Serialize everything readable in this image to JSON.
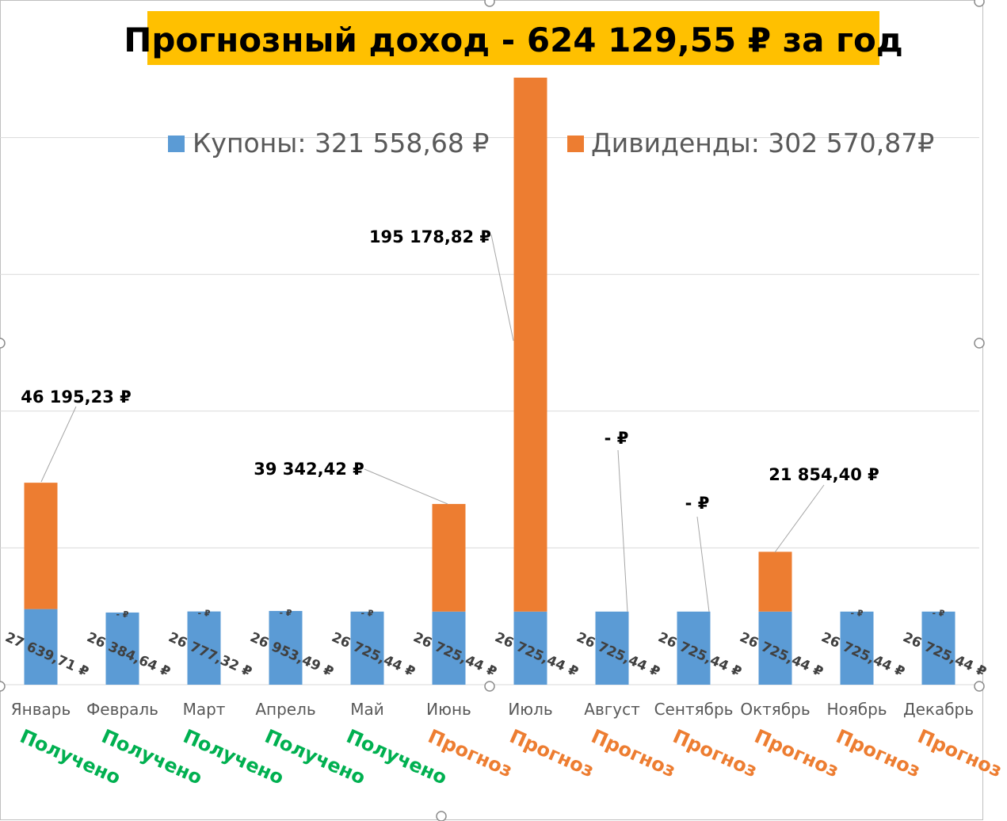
{
  "chart_data": {
    "type": "bar",
    "stacked": true,
    "title": "Прогнозный доход - 624 129,55 ₽ за год",
    "categories": [
      "Январь",
      "Февраль",
      "Март",
      "Апрель",
      "Май",
      "Июнь",
      "Июль",
      "Август",
      "Сентябрь",
      "Октябрь",
      "Ноябрь",
      "Декабрь"
    ],
    "status_labels": [
      "Получено",
      "Получено",
      "Получено",
      "Получено",
      "Получено",
      "Прогноз",
      "Прогноз",
      "Прогноз",
      "Прогноз",
      "Прогноз",
      "Прогноз",
      "Прогноз"
    ],
    "series": [
      {
        "name": "Купоны",
        "legend_label": "Купоны: 321 558,68 ₽",
        "color": "#5b9bd5",
        "values": [
          27639.71,
          26384.64,
          26777.32,
          26953.49,
          26725.44,
          26725.44,
          26725.44,
          26725.44,
          26725.44,
          26725.44,
          26725.44,
          26725.44
        ],
        "labels": [
          "27 639,71 ₽",
          "26 384,64 ₽",
          "26 777,32 ₽",
          "26 953,49 ₽",
          "26 725,44 ₽",
          "26 725,44 ₽",
          "26 725,44 ₽",
          "26 725,44 ₽",
          "26 725,44 ₽",
          "26 725,44 ₽",
          "26 725,44 ₽",
          "26 725,44 ₽"
        ]
      },
      {
        "name": "Дивиденды",
        "legend_label": "Дивиденды: 302 570,87₽",
        "color": "#ed7d31",
        "values": [
          46195.23,
          0,
          0,
          0,
          0,
          39342.42,
          195178.82,
          0,
          0,
          21854.4,
          0,
          0
        ],
        "labels": [
          "46 195,23 ₽",
          "- ₽",
          "- ₽",
          "- ₽",
          "- ₽",
          "39 342,42 ₽",
          "195 178,82 ₽",
          "-   ₽",
          "-   ₽",
          "21 854,40 ₽",
          "- ₽",
          "- ₽"
        ]
      }
    ],
    "ylim": [
      0,
      225000
    ],
    "gridlines": [
      50000,
      100000,
      150000,
      200000
    ],
    "legend_position": "top",
    "colors": {
      "title_bg": "#ffc000",
      "received": "#00b050",
      "forecast": "#ed7d31",
      "grid": "#d9d9d9",
      "axis_text": "#595959"
    }
  }
}
